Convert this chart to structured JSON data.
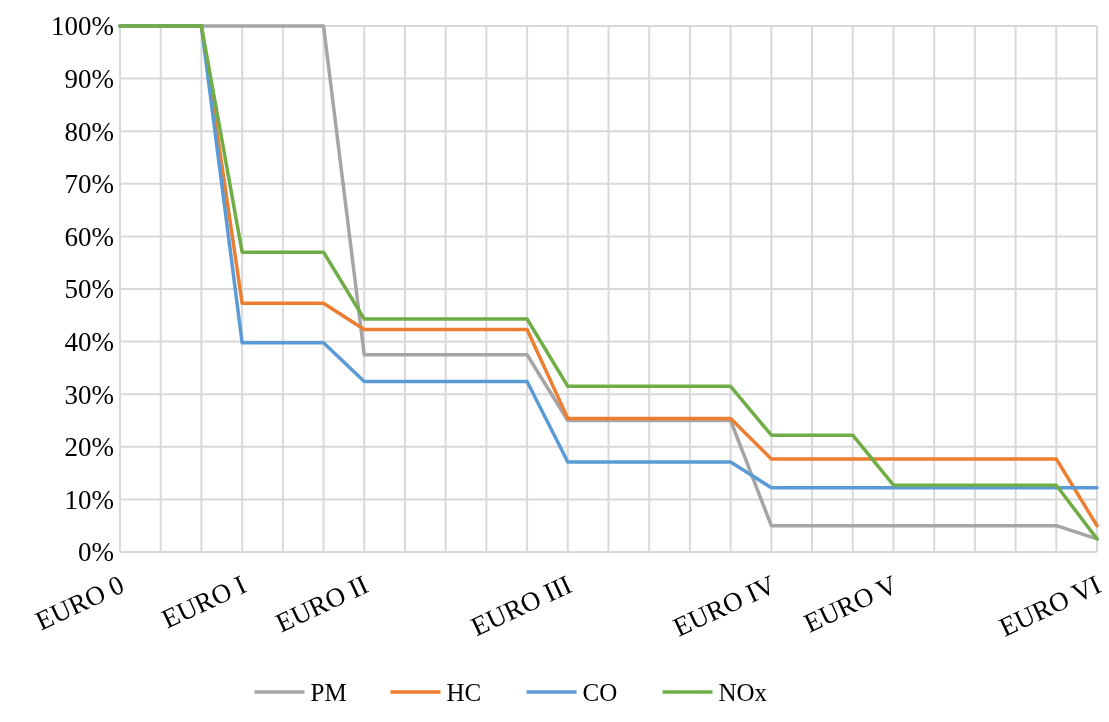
{
  "chart_data": {
    "type": "line",
    "categories": [
      "EURO 0",
      null,
      null,
      "EURO I",
      null,
      null,
      "EURO II",
      null,
      null,
      null,
      null,
      "EURO III",
      null,
      null,
      null,
      null,
      "EURO IV",
      null,
      null,
      "EURO V",
      null,
      null,
      null,
      null,
      "EURO VI"
    ],
    "series": [
      {
        "name": "PM",
        "color": "#a5a5a5",
        "values": [
          100,
          100,
          100,
          100,
          100,
          100,
          37.5,
          37.5,
          37.5,
          37.5,
          37.5,
          25,
          25,
          25,
          25,
          25,
          5,
          5,
          5,
          5,
          5,
          5,
          5,
          5,
          2.5
        ]
      },
      {
        "name": "HC",
        "color": "#ed7d31",
        "values": [
          100,
          100,
          100,
          47.3,
          47.3,
          47.3,
          42.3,
          42.3,
          42.3,
          42.3,
          42.3,
          25.4,
          25.4,
          25.4,
          25.4,
          25.4,
          17.7,
          17.7,
          17.7,
          17.7,
          17.7,
          17.7,
          17.7,
          17.7,
          5
        ]
      },
      {
        "name": "CO",
        "color": "#5b9bd5",
        "values": [
          100,
          100,
          100,
          39.8,
          39.8,
          39.8,
          32.4,
          32.4,
          32.4,
          32.4,
          32.4,
          17.1,
          17.1,
          17.1,
          17.1,
          17.1,
          12.2,
          12.2,
          12.2,
          12.2,
          12.2,
          12.2,
          12.2,
          12.2,
          12.2
        ]
      },
      {
        "name": "NOx",
        "color": "#70ad47",
        "values": [
          100,
          100,
          100,
          57,
          57,
          57,
          44.3,
          44.3,
          44.3,
          44.3,
          44.3,
          31.5,
          31.5,
          31.5,
          31.5,
          31.5,
          22.2,
          22.2,
          22.2,
          12.7,
          12.7,
          12.7,
          12.7,
          12.7,
          2.5
        ]
      }
    ],
    "ylim": [
      0,
      100
    ],
    "yticks": [
      {
        "value": 0,
        "label": "0%"
      },
      {
        "value": 10,
        "label": "10%"
      },
      {
        "value": 20,
        "label": "20%"
      },
      {
        "value": 30,
        "label": "30%"
      },
      {
        "value": 40,
        "label": "40%"
      },
      {
        "value": 50,
        "label": "50%"
      },
      {
        "value": 60,
        "label": "60%"
      },
      {
        "value": 70,
        "label": "70%"
      },
      {
        "value": 80,
        "label": "80%"
      },
      {
        "value": 90,
        "label": "90%"
      },
      {
        "value": 100,
        "label": "100%"
      }
    ],
    "grid": true,
    "legend": "bottom",
    "marker": "none",
    "line_style": "solid"
  }
}
